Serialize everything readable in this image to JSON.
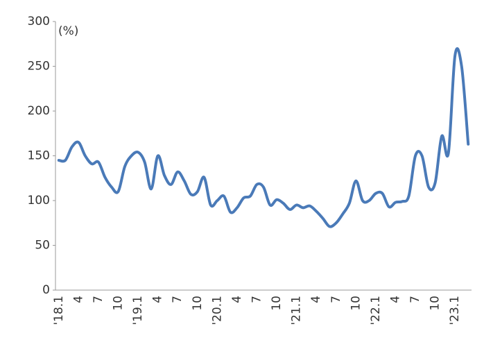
{
  "chart_data": {
    "type": "line",
    "unit_label": "(%)",
    "categories": [
      "'18.1",
      null,
      null,
      "4",
      null,
      null,
      "7",
      null,
      null,
      "10",
      null,
      null,
      "'19.1",
      null,
      null,
      "4",
      null,
      null,
      "7",
      null,
      null,
      "10",
      null,
      null,
      "'20.1",
      null,
      null,
      "4",
      null,
      null,
      "7",
      null,
      null,
      "10",
      null,
      null,
      "'21.1",
      null,
      null,
      "4",
      null,
      null,
      "7",
      null,
      null,
      "10",
      null,
      null,
      "'22.1",
      null,
      null,
      "4",
      null,
      null,
      "7",
      null,
      null,
      "10",
      null,
      null,
      "'23.1",
      null,
      null
    ],
    "series": [
      {
        "color": "#4a7ab8",
        "values": [
          145,
          145,
          160,
          165,
          150,
          141,
          143,
          126,
          115,
          110,
          138,
          150,
          154,
          143,
          113,
          150,
          128,
          118,
          132,
          122,
          107,
          110,
          126,
          95,
          100,
          105,
          87,
          92,
          103,
          105,
          118,
          115,
          95,
          101,
          97,
          90,
          95,
          92,
          94,
          88,
          80,
          71,
          75,
          85,
          97,
          122,
          100,
          100,
          108,
          108,
          93,
          98,
          99,
          105,
          150,
          150,
          115,
          120,
          172,
          153,
          262,
          250,
          163
        ]
      }
    ],
    "ylim": [
      0,
      300
    ],
    "yticks": [
      0,
      50,
      100,
      150,
      200,
      250,
      300
    ],
    "grid": false
  }
}
